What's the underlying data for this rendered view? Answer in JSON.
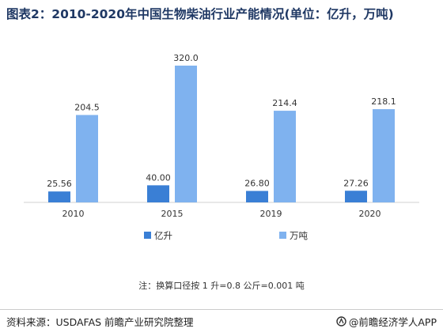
{
  "title": "图表2：2010-2020年中国生物柴油行业产能情况(单位：亿升，万吨)",
  "chart_data": {
    "type": "bar",
    "categories": [
      "2010",
      "2015",
      "2019",
      "2020"
    ],
    "series": [
      {
        "name": "亿升",
        "values": [
          25.56,
          40.0,
          26.8,
          27.26
        ],
        "labels": [
          "25.56",
          "40.00",
          "26.80",
          "27.26"
        ],
        "color": "#3a7fd5"
      },
      {
        "name": "万吨",
        "values": [
          204.5,
          320.0,
          214.4,
          218.1
        ],
        "labels": [
          "204.5",
          "320.0",
          "214.4",
          "218.1"
        ],
        "color": "#7fb2ef"
      }
    ],
    "ylim": [
      0,
      340
    ],
    "grid": false,
    "legend": "bottom"
  },
  "note": "注：换算口径按 1 升=0.8 公斤=0.001 吨",
  "source": "资料来源：USDAFAS 前瞻产业研究院整理",
  "brand": "@前瞻经济学人APP",
  "colors": {
    "axis": "#d0d0d0",
    "text": "#333333",
    "title": "#1f3864"
  }
}
